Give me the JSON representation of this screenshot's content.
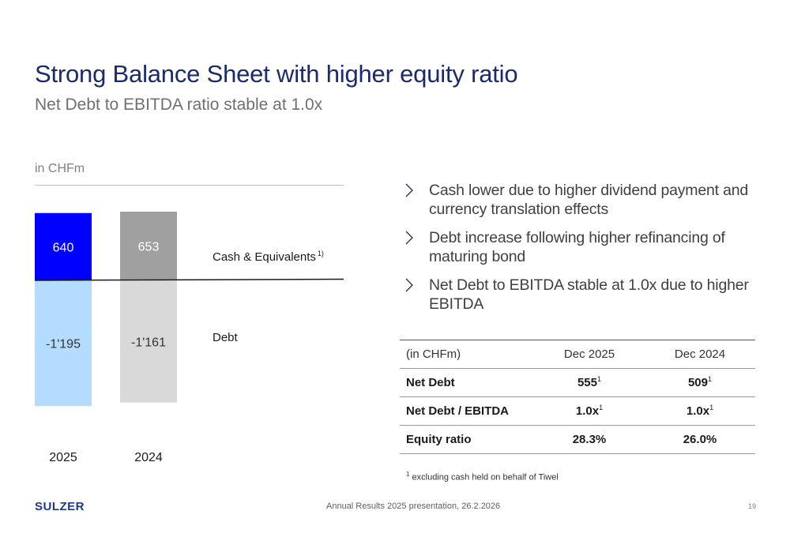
{
  "slide": {
    "title": "Strong Balance Sheet with higher equity ratio",
    "subtitle": "Net Debt to EBITDA ratio stable at 1.0x",
    "unit": "in CHFm",
    "page_number": "19",
    "footer": "Annual Results 2025 presentation, 26.2.2026",
    "logo": "SULZER"
  },
  "chart_data": {
    "type": "bar",
    "stacked": true,
    "categories": [
      "2025",
      "2024"
    ],
    "series": [
      {
        "name": "Cash & Equivalents",
        "values": [
          640,
          653
        ],
        "labels": [
          "640",
          "653"
        ],
        "colors": [
          "#0000ff",
          "#a0a0a0"
        ],
        "label_colors": [
          "#ffffff",
          "#ffffff"
        ]
      },
      {
        "name": "Debt",
        "values": [
          -1195,
          -1161
        ],
        "labels": [
          "-1'195",
          "-1'161"
        ],
        "colors": [
          "#b4dcff",
          "#d9d9d9"
        ],
        "label_colors": [
          "#333333",
          "#333333"
        ]
      }
    ],
    "legend": [
      {
        "text": "Cash & Equivalents",
        "sup": "1)"
      },
      {
        "text": "Debt",
        "sup": ""
      }
    ],
    "ylim": [
      -1250,
      700
    ],
    "grid": false
  },
  "bullets": [
    "Cash lower due to higher dividend payment and currency translation effects",
    "Debt increase following higher refinancing of maturing bond",
    "Net Debt to EBITDA stable at 1.0x due to higher EBITDA"
  ],
  "table": {
    "header": [
      "(in CHFm)",
      "Dec 2025",
      "Dec 2024"
    ],
    "rows": [
      {
        "label": "Net Debt",
        "v1": "555",
        "s1": "1",
        "v2": "509",
        "s2": "1"
      },
      {
        "label": "Net Debt / EBITDA",
        "v1": "1.0x",
        "s1": "1",
        "v2": "1.0x",
        "s2": "1"
      },
      {
        "label": "Equity ratio",
        "v1": "28.3%",
        "s1": "",
        "v2": "26.0%",
        "s2": ""
      }
    ]
  },
  "footnote": {
    "sup": "1",
    "text": " excluding cash held on behalf of Tiwel"
  },
  "colors": {
    "title": "#1a2a6c",
    "chevron": "#1a2a6c"
  }
}
